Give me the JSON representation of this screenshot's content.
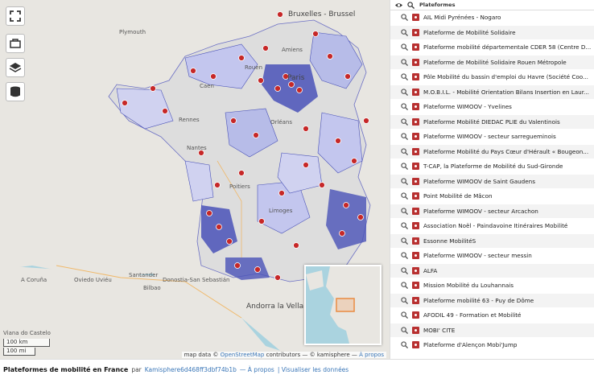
{
  "map": {
    "places": [
      {
        "id": "bruxelles",
        "label": "Bruxelles - Brussel",
        "big": true
      },
      {
        "id": "plymouth",
        "label": "Plymouth",
        "big": false
      },
      {
        "id": "amiens",
        "label": "Amiens",
        "big": false
      },
      {
        "id": "rouen",
        "label": "Rouen",
        "big": false
      },
      {
        "id": "caen",
        "label": "Caen",
        "big": false
      },
      {
        "id": "paris",
        "label": "Paris",
        "big": true
      },
      {
        "id": "rennes",
        "label": "Rennes",
        "big": false
      },
      {
        "id": "orleans",
        "label": "Orléans",
        "big": false
      },
      {
        "id": "nantes",
        "label": "Nantes",
        "big": false
      },
      {
        "id": "poitiers",
        "label": "Poitiers",
        "big": false
      },
      {
        "id": "limoges",
        "label": "Limoges",
        "big": false
      },
      {
        "id": "santander",
        "label": "Santander",
        "big": false
      },
      {
        "id": "donostia",
        "label": "Donostia-San Sebastián",
        "big": false
      },
      {
        "id": "coruna",
        "label": "A Coruña",
        "big": false
      },
      {
        "id": "oviedo",
        "label": "Oviedo Uviéu",
        "big": false
      },
      {
        "id": "bilbao",
        "label": "Bilbao",
        "big": false
      },
      {
        "id": "andorra",
        "label": "Andorra la Vella",
        "big": true
      },
      {
        "id": "vianna",
        "label": "Viana do Castelo",
        "big": false
      }
    ],
    "scale_km": "100 km",
    "scale_mi": "100 mi",
    "attribution_prefix": "map data ©",
    "attribution_osm": "OpenStreetMap",
    "attribution_mid": "contributors — © kamisphere —",
    "attribution_about": "À propos"
  },
  "controls": [
    {
      "id": "fullscreen",
      "icon": "fullscreen-icon"
    },
    {
      "id": "embed",
      "icon": "embed-icon"
    },
    {
      "id": "layers",
      "icon": "layers-icon"
    },
    {
      "id": "data",
      "icon": "database-icon"
    }
  ],
  "panel": {
    "header_title": "Plateformes",
    "items": [
      "AIL Midi Pyrénées - Nogaro",
      "Plateforme de Mobilité Solidaire",
      "Plateforme mobilité départementale CDER 58 (Centre D...",
      "Plateforme de Mobilité Solidaire Rouen Métropole",
      "Pôle Mobilité du bassin d'emploi du Havre (Société Coo...",
      "M.O.B.I.L. - Mobilité Orientation Bilans Insertion en Laur...",
      "Plateforme WIMOOV - Yvelines",
      "Plateforme Mobilité DIEDAC PLIE du Valentinois",
      "Plateforme WIMOOV - secteur sarregueminois",
      "Plateforme Mobilité du Pays Cœur d'Hérault « Bougeon...",
      "T-CAP, la Plateforme de Mobilité du Sud-Gironde",
      "Plateforme WIMOOV de Saint Gaudens",
      "Point Mobilité de Mâcon",
      "Plateforme WIMOOV - secteur Arcachon",
      "Association Noël - Paindavoine Itinéraires Mobilité",
      "Essonne MobilitéS",
      "Plateforme WIMOOV - secteur messin",
      "ALFA",
      "Mission Mobilité du Louhannais",
      "Plateforme mobilité 63 - Puy de Dôme",
      "AFODIL 49 - Formation et Mobilité",
      "MOBI' CITE",
      "Plateforme d'Alençon Mobi'Jump"
    ]
  },
  "footer": {
    "title": "Plateformes de mobilité en France",
    "by": "par",
    "author": "Kamisphere6d468ff3dbf74b1b",
    "sep1": "— À propos",
    "sep2": "| Visualiser les données"
  },
  "colors": {
    "accent": "#3b77b8",
    "marker": "#c62828",
    "region_dark": "#4a52b8",
    "region_light": "#b7bce8"
  }
}
